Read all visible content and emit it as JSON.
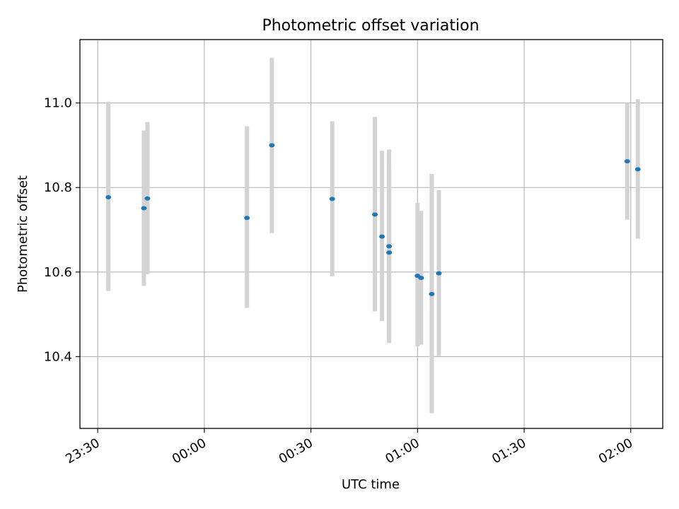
{
  "chart_data": {
    "type": "scatter",
    "title": "Photometric offset variation",
    "xlabel": "UTC time",
    "ylabel": "Photometric offset",
    "x_ticks": [
      "23:30",
      "00:00",
      "00:30",
      "01:00",
      "01:30",
      "02:00"
    ],
    "y_ticks": [
      "10.4",
      "10.6",
      "10.8",
      "11.0"
    ],
    "xlim": [
      "23:25",
      "02:09"
    ],
    "ylim": [
      10.23,
      11.15
    ],
    "grid": true,
    "colors": {
      "points": "#1f77b4",
      "error_bars": "#d3d3d3",
      "grid": "#b0b0b0"
    },
    "points": [
      {
        "t": "23:33",
        "y": 10.777,
        "yerr_low": 10.555,
        "yerr_high": 11.003
      },
      {
        "t": "23:43",
        "y": 10.751,
        "yerr_low": 10.567,
        "yerr_high": 10.935
      },
      {
        "t": "23:44",
        "y": 10.774,
        "yerr_low": 10.595,
        "yerr_high": 10.955
      },
      {
        "t": "00:12",
        "y": 10.728,
        "yerr_low": 10.515,
        "yerr_high": 10.945
      },
      {
        "t": "00:19",
        "y": 10.9,
        "yerr_low": 10.692,
        "yerr_high": 11.107
      },
      {
        "t": "00:36",
        "y": 10.773,
        "yerr_low": 10.59,
        "yerr_high": 10.957
      },
      {
        "t": "00:48",
        "y": 10.736,
        "yerr_low": 10.507,
        "yerr_high": 10.967
      },
      {
        "t": "00:50",
        "y": 10.684,
        "yerr_low": 10.484,
        "yerr_high": 10.887
      },
      {
        "t": "00:52",
        "y": 10.661,
        "yerr_low": 10.432,
        "yerr_high": 10.89
      },
      {
        "t": "00:52",
        "y": 10.646,
        "yerr_low": 10.438,
        "yerr_high": 10.855
      },
      {
        "t": "01:00",
        "y": 10.591,
        "yerr_low": 10.424,
        "yerr_high": 10.763
      },
      {
        "t": "01:01",
        "y": 10.586,
        "yerr_low": 10.428,
        "yerr_high": 10.745
      },
      {
        "t": "01:04",
        "y": 10.548,
        "yerr_low": 10.266,
        "yerr_high": 10.832
      },
      {
        "t": "01:06",
        "y": 10.597,
        "yerr_low": 10.401,
        "yerr_high": 10.794
      },
      {
        "t": "01:59",
        "y": 10.862,
        "yerr_low": 10.724,
        "yerr_high": 11.0
      },
      {
        "t": "02:02",
        "y": 10.843,
        "yerr_low": 10.679,
        "yerr_high": 11.009
      }
    ]
  }
}
